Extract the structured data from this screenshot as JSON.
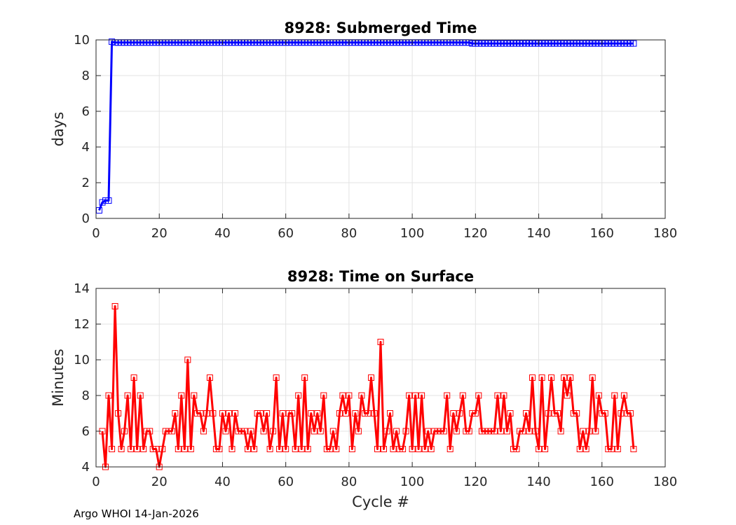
{
  "footer": "Argo WHOI 14-Jan-2026",
  "chart_data": [
    {
      "type": "line",
      "title": "8928: Submerged Time",
      "xlabel": "",
      "ylabel": "days",
      "xlim": [
        0,
        180
      ],
      "ylim": [
        0,
        10
      ],
      "xticks": [
        0,
        20,
        40,
        60,
        80,
        100,
        120,
        140,
        160,
        180
      ],
      "yticks": [
        0,
        2,
        4,
        6,
        8,
        10
      ],
      "grid": true,
      "color": "#0000ff",
      "marker": "square",
      "series_values": {
        "x_start": 1,
        "x_end": 170,
        "values": [
          0.45,
          0.9,
          1.0,
          1.0,
          9.9,
          9.85,
          9.85,
          9.85,
          9.85,
          9.85,
          9.85,
          9.85,
          9.85,
          9.85,
          9.85,
          9.85,
          9.85,
          9.85,
          9.85,
          9.85,
          9.85,
          9.85,
          9.85,
          9.85,
          9.85,
          9.85,
          9.85,
          9.85,
          9.85,
          9.85,
          9.85,
          9.85,
          9.85,
          9.85,
          9.85,
          9.85,
          9.85,
          9.85,
          9.85,
          9.85,
          9.85,
          9.85,
          9.85,
          9.85,
          9.85,
          9.85,
          9.85,
          9.85,
          9.85,
          9.85,
          9.85,
          9.85,
          9.85,
          9.85,
          9.85,
          9.85,
          9.85,
          9.85,
          9.85,
          9.85,
          9.85,
          9.85,
          9.85,
          9.85,
          9.85,
          9.85,
          9.85,
          9.85,
          9.85,
          9.85,
          9.85,
          9.85,
          9.85,
          9.85,
          9.85,
          9.85,
          9.85,
          9.85,
          9.85,
          9.85,
          9.85,
          9.85,
          9.85,
          9.85,
          9.85,
          9.85,
          9.85,
          9.85,
          9.85,
          9.85,
          9.85,
          9.85,
          9.85,
          9.85,
          9.85,
          9.85,
          9.85,
          9.85,
          9.85,
          9.85,
          9.85,
          9.85,
          9.85,
          9.85,
          9.85,
          9.85,
          9.85,
          9.85,
          9.85,
          9.85,
          9.85,
          9.85,
          9.85,
          9.85,
          9.85,
          9.85,
          9.85,
          9.85,
          9.8,
          9.8,
          9.8,
          9.8,
          9.8,
          9.8,
          9.8,
          9.8,
          9.8,
          9.8,
          9.8,
          9.8,
          9.8,
          9.8,
          9.8,
          9.8,
          9.8,
          9.8,
          9.8,
          9.8,
          9.8,
          9.8,
          9.8,
          9.8,
          9.8,
          9.8,
          9.8,
          9.8,
          9.8,
          9.8,
          9.8,
          9.8,
          9.8,
          9.8,
          9.8,
          9.8,
          9.8,
          9.8,
          9.8,
          9.8,
          9.8,
          9.8,
          9.8,
          9.8,
          9.8,
          9.8,
          9.8,
          9.8,
          9.8,
          9.8,
          9.8,
          9.8
        ]
      }
    },
    {
      "type": "line",
      "title": "8928: Time on Surface",
      "xlabel": "Cycle #",
      "ylabel": "Minutes",
      "xlim": [
        0,
        180
      ],
      "ylim": [
        4,
        14
      ],
      "xticks": [
        0,
        20,
        40,
        60,
        80,
        100,
        120,
        140,
        160,
        180
      ],
      "yticks": [
        4,
        6,
        8,
        10,
        12,
        14
      ],
      "grid": true,
      "color": "#ff0000",
      "marker": "square",
      "series_values": {
        "x_start": 2,
        "x_end": 170,
        "values": [
          6,
          4,
          8,
          5,
          13,
          7,
          5,
          6,
          8,
          5,
          9,
          5,
          8,
          5,
          6,
          6,
          5,
          5,
          4,
          5,
          6,
          6,
          6,
          7,
          5,
          8,
          5,
          10,
          5,
          8,
          7,
          7,
          6,
          7,
          9,
          7,
          5,
          5,
          7,
          6,
          7,
          5,
          7,
          6,
          6,
          6,
          5,
          6,
          5,
          7,
          7,
          6,
          7,
          5,
          6,
          9,
          5,
          7,
          5,
          7,
          7,
          5,
          8,
          5,
          9,
          5,
          7,
          6,
          7,
          6,
          8,
          5,
          5,
          6,
          5,
          7,
          8,
          7,
          8,
          5,
          7,
          6,
          8,
          7,
          7,
          9,
          7,
          5,
          11,
          5,
          6,
          7,
          5,
          6,
          5,
          5,
          6,
          8,
          5,
          8,
          5,
          8,
          5,
          6,
          5,
          6,
          6,
          6,
          6,
          8,
          5,
          7,
          6,
          7,
          8,
          6,
          6,
          7,
          7,
          8,
          6,
          6,
          6,
          6,
          6,
          8,
          6,
          8,
          6,
          7,
          5,
          5,
          6,
          6,
          7,
          6,
          9,
          6,
          5,
          9,
          5,
          7,
          9,
          7,
          7,
          6,
          9,
          8,
          9,
          7,
          7,
          5,
          6,
          5,
          6,
          9,
          6,
          8,
          7,
          7,
          5,
          5,
          8,
          5,
          7,
          8,
          7,
          7,
          5
        ]
      }
    }
  ]
}
